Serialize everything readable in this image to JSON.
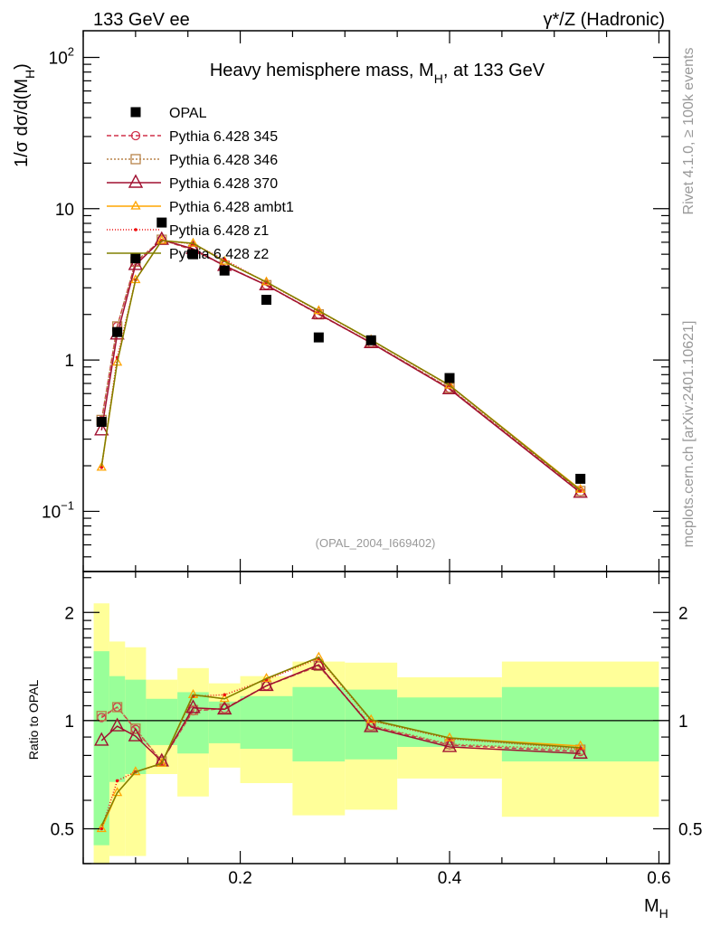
{
  "header": {
    "left": "133 GeV ee",
    "right": "γ*/Z (Hadronic)",
    "side_top": "Rivet 4.1.0, ≥ 100k events",
    "side_bottom": "mcplots.cern.ch [arXiv:2401.10621]"
  },
  "chart_data": [
    {
      "type": "line",
      "panel": "main",
      "title": "Heavy hemisphere mass, M_H, at 133 GeV",
      "title_parts": [
        "Heavy hemisphere mass, M",
        "H",
        ", at 133 GeV"
      ],
      "ylabel_parts": [
        "1/σ  dσ/d(M",
        "H",
        ")"
      ],
      "yscale": "log",
      "ylim": [
        0.04,
        150
      ],
      "xlim": [
        0.05,
        0.61
      ],
      "ytick_labels": [
        {
          "v": 100,
          "t": "10",
          "sup": "2"
        },
        {
          "v": 10,
          "t": "10",
          "sup": ""
        },
        {
          "v": 1,
          "t": "1",
          "sup": ""
        },
        {
          "v": 0.1,
          "t": "10",
          "sup": "−1"
        }
      ],
      "analysis_id": "(OPAL_2004_I669402)",
      "legend_placement": "top-left",
      "bin_edges": [
        0.06,
        0.075,
        0.09,
        0.11,
        0.14,
        0.17,
        0.2,
        0.25,
        0.3,
        0.35,
        0.45,
        0.6
      ],
      "x": [
        0.0675,
        0.0825,
        0.1,
        0.125,
        0.155,
        0.185,
        0.225,
        0.275,
        0.325,
        0.4,
        0.525
      ],
      "data": {
        "name": "OPAL",
        "values": [
          0.39,
          1.53,
          4.7,
          8.1,
          5.0,
          3.9,
          2.5,
          1.41,
          1.35,
          0.76,
          0.164
        ]
      },
      "series": [
        {
          "name": "Pythia 6.428 345",
          "color": "#d0304a",
          "dash": "5,3",
          "marker": "circle",
          "ratio": [
            1.02,
            1.09,
            0.945,
            0.77,
            1.065,
            1.08,
            1.25,
            1.42,
            0.965,
            0.855,
            0.82
          ]
        },
        {
          "name": "Pythia 6.428 346",
          "color": "#b8844a",
          "dash": "2,2",
          "marker": "square",
          "ratio": [
            1.03,
            1.09,
            0.95,
            0.77,
            1.07,
            1.08,
            1.25,
            1.42,
            0.97,
            0.86,
            0.83
          ]
        },
        {
          "name": "Pythia 6.428 370",
          "color": "#a01030",
          "dash": "",
          "marker": "triangle",
          "ratio": [
            0.88,
            0.965,
            0.905,
            0.77,
            1.085,
            1.075,
            1.25,
            1.43,
            0.96,
            0.845,
            0.81
          ]
        },
        {
          "name": "Pythia 6.428 ambt1",
          "color": "#ffa500",
          "dash": "",
          "marker": "triangle-small",
          "ratio": [
            0.5,
            0.63,
            0.72,
            0.76,
            1.18,
            1.15,
            1.31,
            1.5,
            1.005,
            0.895,
            0.85
          ]
        },
        {
          "name": "Pythia 6.428 z1",
          "color": "#ee1111",
          "dash": "1,2",
          "marker": "dot",
          "ratio": [
            0.5,
            0.68,
            0.72,
            0.76,
            1.17,
            1.18,
            1.3,
            1.49,
            1.0,
            0.89,
            0.835
          ]
        },
        {
          "name": "Pythia 6.428 z2",
          "color": "#808000",
          "dash": "",
          "marker": "none",
          "ratio": [
            0.51,
            0.63,
            0.72,
            0.76,
            1.18,
            1.15,
            1.31,
            1.5,
            1.005,
            0.895,
            0.84
          ]
        }
      ]
    },
    {
      "type": "line",
      "panel": "ratio",
      "ylabel": "Ratio to OPAL",
      "yscale": "log",
      "ylim": [
        0.4,
        2.6
      ],
      "ytick_labels": [
        "0.5",
        "1",
        "2"
      ],
      "xlabel_parts": [
        "M",
        "H"
      ],
      "xtick_labels": [
        "0.2",
        "0.4",
        "0.6"
      ],
      "band_yellow_hi": [
        2.12,
        1.66,
        1.6,
        1.3,
        1.4,
        1.27,
        1.33,
        1.46,
        1.45,
        1.32,
        1.46
      ],
      "band_yellow_lo": [
        0.35,
        0.42,
        0.42,
        0.71,
        0.615,
        0.74,
        0.67,
        0.545,
        0.565,
        0.69,
        0.54
      ],
      "band_green_hi": [
        1.56,
        1.33,
        1.3,
        1.15,
        1.2,
        1.13,
        1.17,
        1.24,
        1.22,
        1.16,
        1.24
      ],
      "band_green_lo": [
        0.45,
        0.675,
        0.71,
        0.855,
        0.81,
        0.865,
        0.835,
        0.77,
        0.78,
        0.845,
        0.77
      ],
      "colors": {
        "yellow": "#ffff99",
        "green": "#99ff99"
      }
    }
  ]
}
